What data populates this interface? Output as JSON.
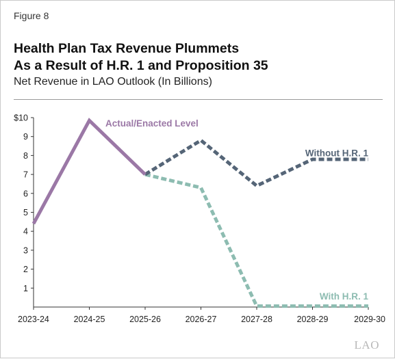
{
  "figure_label": "Figure 8",
  "title_line1": "Health Plan Tax Revenue Plummets",
  "title_line2": "As a Result of H.R. 1 and Proposition 35",
  "subtitle": "Net Revenue in LAO Outlook (In Billions)",
  "watermark": "LAO",
  "chart_data": {
    "type": "line",
    "categories": [
      "2023-24",
      "2024-25",
      "2025-26",
      "2026-27",
      "2027-28",
      "2028-29",
      "2029-30"
    ],
    "ylim": [
      0,
      10
    ],
    "yticks": [
      1,
      2,
      3,
      4,
      5,
      6,
      7,
      8,
      9,
      10
    ],
    "ytick_labels": [
      "1",
      "2",
      "3",
      "4",
      "5",
      "6",
      "7",
      "8",
      "9",
      "$10"
    ],
    "grid": false,
    "series": [
      {
        "name": "Actual/Enacted Level",
        "color": "#9b78a6",
        "style": "solid",
        "x": [
          0,
          1,
          2
        ],
        "values": [
          4.4,
          9.85,
          7.0
        ]
      },
      {
        "name": "Without H.R. 1",
        "color": "#556577",
        "style": "dashed",
        "x": [
          2,
          3,
          4,
          5,
          6
        ],
        "values": [
          7.0,
          8.8,
          6.4,
          7.8,
          7.8
        ]
      },
      {
        "name": "With H.R. 1",
        "color": "#8dbcb1",
        "style": "dashed",
        "x": [
          2,
          3,
          4,
          5,
          6
        ],
        "values": [
          7.0,
          6.3,
          0.05,
          0.05,
          0.05
        ]
      }
    ]
  }
}
